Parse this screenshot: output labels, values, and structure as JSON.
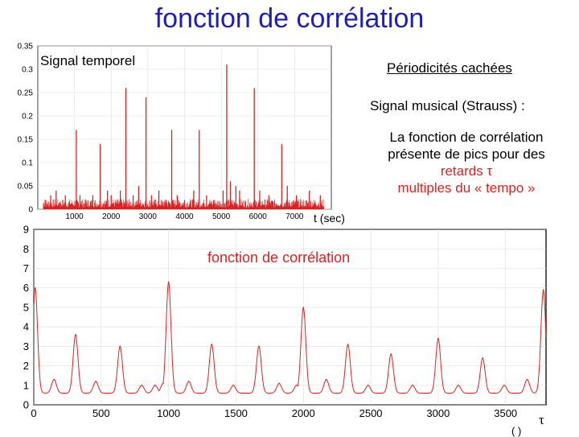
{
  "title": "fonction de corrélation",
  "labels": {
    "signal_temporel": "Signal temporel",
    "periodicites": "Périodicités cachées",
    "signal_musical": "Signal musical (Strauss) :",
    "line1": "La fonction de corrélation",
    "line2": "présente de pics pour des",
    "line3": "retards τ",
    "line4": "multiples du « tempo »",
    "t_sec": "t (sec)",
    "corr_label": "fonction de corrélation",
    "tau": "τ",
    "paren": "(        )"
  },
  "colors": {
    "title": "#1f1fb4",
    "accent": "#e0201e",
    "signal": "#e02020"
  },
  "chart_data": [
    {
      "type": "line",
      "name": "top-signal",
      "xlim": [
        0,
        8000
      ],
      "ylim": [
        0,
        0.35
      ],
      "xticks": [
        "1000",
        "2000",
        "3000",
        "4000",
        "5000",
        "6000",
        "7000"
      ],
      "xtick_values": [
        1000,
        2000,
        3000,
        4000,
        5000,
        6000,
        7000
      ],
      "yticks": [
        "0",
        "0.05",
        "0.1",
        "0.15",
        "0.2",
        "0.25",
        "0.3",
        "0.35"
      ],
      "ytick_values": [
        0,
        0.05,
        0.1,
        0.15,
        0.2,
        0.25,
        0.3,
        0.35
      ],
      "peaks": [
        {
          "x": 200,
          "y": 0.02
        },
        {
          "x": 350,
          "y": 0.03
        },
        {
          "x": 500,
          "y": 0.04
        },
        {
          "x": 600,
          "y": 0.015
        },
        {
          "x": 750,
          "y": 0.03
        },
        {
          "x": 1050,
          "y": 0.17
        },
        {
          "x": 1150,
          "y": 0.03
        },
        {
          "x": 1300,
          "y": 0.02
        },
        {
          "x": 1500,
          "y": 0.03
        },
        {
          "x": 1700,
          "y": 0.14
        },
        {
          "x": 1900,
          "y": 0.04
        },
        {
          "x": 2000,
          "y": 0.03
        },
        {
          "x": 2250,
          "y": 0.04
        },
        {
          "x": 2400,
          "y": 0.26
        },
        {
          "x": 2600,
          "y": 0.03
        },
        {
          "x": 2750,
          "y": 0.05
        },
        {
          "x": 2950,
          "y": 0.24
        },
        {
          "x": 3100,
          "y": 0.03
        },
        {
          "x": 3300,
          "y": 0.04
        },
        {
          "x": 3500,
          "y": 0.02
        },
        {
          "x": 3650,
          "y": 0.17
        },
        {
          "x": 3800,
          "y": 0.03
        },
        {
          "x": 4000,
          "y": 0.02
        },
        {
          "x": 4250,
          "y": 0.04
        },
        {
          "x": 4400,
          "y": 0.17
        },
        {
          "x": 4600,
          "y": 0.03
        },
        {
          "x": 4800,
          "y": 0.02
        },
        {
          "x": 5050,
          "y": 0.04
        },
        {
          "x": 5150,
          "y": 0.31
        },
        {
          "x": 5250,
          "y": 0.06
        },
        {
          "x": 5400,
          "y": 0.05
        },
        {
          "x": 5500,
          "y": 0.04
        },
        {
          "x": 5900,
          "y": 0.26
        },
        {
          "x": 6050,
          "y": 0.04
        },
        {
          "x": 6300,
          "y": 0.03
        },
        {
          "x": 6650,
          "y": 0.14
        },
        {
          "x": 6800,
          "y": 0.05
        },
        {
          "x": 7050,
          "y": 0.03
        },
        {
          "x": 7400,
          "y": 0.04
        },
        {
          "x": 7700,
          "y": 0.03
        }
      ]
    },
    {
      "type": "line",
      "name": "bottom-correlation",
      "xlim": [
        0,
        3800
      ],
      "ylim": [
        0,
        9
      ],
      "xticks": [
        "0",
        "500",
        "1000",
        "1500",
        "2000",
        "2500",
        "3000",
        "3500"
      ],
      "xtick_values": [
        0,
        500,
        1000,
        1500,
        2000,
        2500,
        3000,
        3500
      ],
      "yticks": [
        "0",
        "1",
        "2",
        "3",
        "4",
        "5",
        "6",
        "7",
        "8",
        "9"
      ],
      "ytick_values": [
        0,
        1,
        2,
        3,
        4,
        5,
        6,
        7,
        8,
        9
      ],
      "baseline": 0.6,
      "peaks": [
        {
          "x": 10,
          "y": 6.0
        },
        {
          "x": 150,
          "y": 1.3
        },
        {
          "x": 310,
          "y": 3.6
        },
        {
          "x": 460,
          "y": 1.2
        },
        {
          "x": 640,
          "y": 3.0
        },
        {
          "x": 800,
          "y": 1.0
        },
        {
          "x": 900,
          "y": 1.0
        },
        {
          "x": 960,
          "y": 1.1
        },
        {
          "x": 1000,
          "y": 6.3
        },
        {
          "x": 1150,
          "y": 1.2
        },
        {
          "x": 1320,
          "y": 3.1
        },
        {
          "x": 1480,
          "y": 1.0
        },
        {
          "x": 1670,
          "y": 3.0
        },
        {
          "x": 1820,
          "y": 1.1
        },
        {
          "x": 1950,
          "y": 1.0
        },
        {
          "x": 2000,
          "y": 5.0
        },
        {
          "x": 2170,
          "y": 1.3
        },
        {
          "x": 2330,
          "y": 3.1
        },
        {
          "x": 2480,
          "y": 1.0
        },
        {
          "x": 2650,
          "y": 2.6
        },
        {
          "x": 2810,
          "y": 1.0
        },
        {
          "x": 3000,
          "y": 3.4
        },
        {
          "x": 3150,
          "y": 1.0
        },
        {
          "x": 3330,
          "y": 2.4
        },
        {
          "x": 3490,
          "y": 1.0
        },
        {
          "x": 3660,
          "y": 1.3
        },
        {
          "x": 3780,
          "y": 5.9
        }
      ]
    }
  ]
}
